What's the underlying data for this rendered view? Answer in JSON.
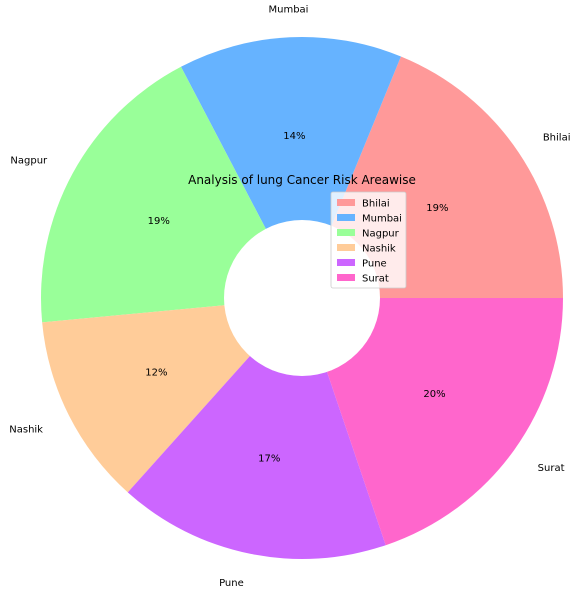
{
  "chart_data": {
    "type": "pie",
    "title": "Analysis of lung Cancer Risk Areawise",
    "donut": true,
    "start_angle_deg": 0,
    "direction": "counterclockwise",
    "categories": [
      "Bhilai",
      "Mumbai",
      "Nagpur",
      "Nashik",
      "Pune",
      "Surat"
    ],
    "values": [
      19,
      14,
      19,
      12,
      17,
      20
    ],
    "percent_labels": [
      "19%",
      "14%",
      "19%",
      "12%",
      "17%",
      "20%"
    ],
    "colors": [
      "#ff9999",
      "#66b3ff",
      "#99ff99",
      "#ffcc99",
      "#cc66ff",
      "#ff66cc"
    ],
    "legend": {
      "placement": "center",
      "entries": [
        "Bhilai",
        "Mumbai",
        "Nagpur",
        "Nashik",
        "Pune",
        "Surat"
      ]
    }
  }
}
